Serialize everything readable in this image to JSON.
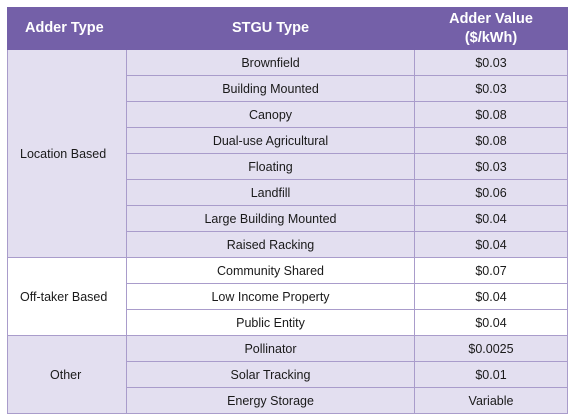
{
  "header": {
    "adder_type": "Adder Type",
    "stgu_type": "STGU Type",
    "adder_value_line1": "Adder Value",
    "adder_value_line2": "($/kWh)"
  },
  "groups": [
    {
      "name": "Location Based",
      "rows": [
        {
          "stgu": "Brownfield",
          "value": "$0.03"
        },
        {
          "stgu": "Building Mounted",
          "value": "$0.03"
        },
        {
          "stgu": "Canopy",
          "value": "$0.08"
        },
        {
          "stgu": "Dual-use Agricultural",
          "value": "$0.08"
        },
        {
          "stgu": "Floating",
          "value": "$0.03"
        },
        {
          "stgu": "Landfill",
          "value": "$0.06"
        },
        {
          "stgu": "Large Building Mounted",
          "value": "$0.04"
        },
        {
          "stgu": "Raised Racking",
          "value": "$0.04"
        }
      ]
    },
    {
      "name": "Off-taker Based",
      "rows": [
        {
          "stgu": "Community Shared",
          "value": "$0.07"
        },
        {
          "stgu": "Low Income Property",
          "value": "$0.04"
        },
        {
          "stgu": "Public Entity",
          "value": "$0.04"
        }
      ]
    },
    {
      "name": "Other",
      "rows": [
        {
          "stgu": "Pollinator",
          "value": "$0.0025"
        },
        {
          "stgu": "Solar Tracking",
          "value": "$0.01"
        },
        {
          "stgu": "Energy Storage",
          "value": "Variable"
        }
      ]
    }
  ],
  "colors": {
    "header_bg": "#7460a8",
    "shaded_row_bg": "#e3dff0",
    "border": "#a99ccb"
  }
}
